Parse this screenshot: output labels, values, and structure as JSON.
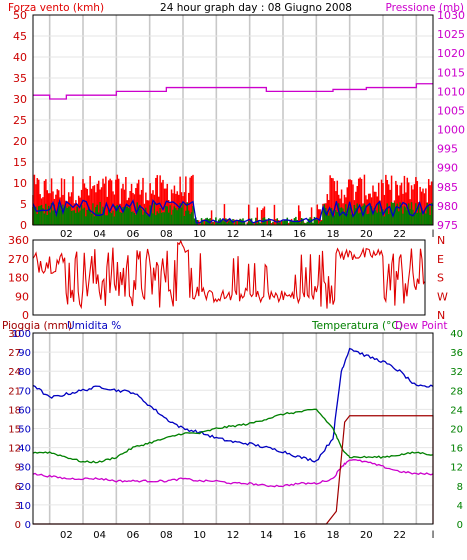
{
  "header": {
    "left_label": "Forza vento (kmh)",
    "title": "24 hour graph day : 08 Giugno 2008",
    "right_label": "Pressione (mb)"
  },
  "bottom_header": {
    "rain_label": "Pioggia (mm)",
    "hum_label": "Umidita %",
    "temp_label": "Temperatura (°C)",
    "dew_label": "Dew Point"
  },
  "colors": {
    "wind": "#ff0000",
    "gust": "#ff0000",
    "green": "#008000",
    "blue": "#0000c0",
    "pressure": "#cc00cc",
    "direction": "#e00000",
    "rain": "#a00000",
    "humidity": "#0000c0",
    "temperature": "#008000",
    "dew": "#cc00cc",
    "grid": "#c8c8c8"
  },
  "chart_data": [
    {
      "type": "line",
      "name": "wind",
      "x_ticks": [
        "02",
        "04",
        "06",
        "08",
        "10",
        "12",
        "14",
        "16",
        "18",
        "20",
        "22",
        "l"
      ],
      "left_axis": {
        "ticks": [
          0,
          5,
          10,
          15,
          20,
          25,
          30,
          35,
          40,
          45,
          50
        ],
        "ylim": [
          0,
          50
        ],
        "label": "Forza vento (kmh)"
      },
      "right_axis": {
        "ticks": [
          975,
          980,
          985,
          990,
          995,
          1000,
          1005,
          1010,
          1015,
          1020,
          1025,
          1030
        ],
        "ylim": [
          975,
          1030
        ],
        "label": "Pressione (mb)"
      },
      "pressure_steps": [
        [
          0,
          1009
        ],
        [
          1,
          1008
        ],
        [
          2,
          1009
        ],
        [
          5,
          1010
        ],
        [
          8,
          1011
        ],
        [
          14,
          1010
        ],
        [
          18,
          1010.5
        ],
        [
          20,
          1011
        ],
        [
          23,
          1012
        ],
        [
          24,
          1012
        ]
      ],
      "wind_max_level": 12,
      "wind_min_level": 4
    },
    {
      "type": "line",
      "name": "direction",
      "left_axis": {
        "ticks": [
          0,
          90,
          180,
          270,
          360
        ],
        "ylim": [
          0,
          360
        ]
      },
      "right_axis": {
        "ticks": [
          "N",
          "W",
          "S",
          "E",
          "N"
        ]
      }
    },
    {
      "type": "line",
      "name": "temp_hum_rain",
      "x_ticks": [
        "02",
        "04",
        "06",
        "08",
        "10",
        "12",
        "14",
        "16",
        "18",
        "20",
        "22",
        "l"
      ],
      "rain_axis": {
        "ticks": [
          0,
          3,
          6,
          9,
          12,
          15,
          18,
          21,
          24,
          27,
          30
        ],
        "ylim": [
          0,
          30
        ]
      },
      "hum_axis": {
        "ticks": [
          0,
          10,
          20,
          30,
          40,
          50,
          60,
          70,
          80,
          90,
          100
        ],
        "ylim": [
          0,
          100
        ]
      },
      "temp_axis": {
        "ticks": [
          0,
          4,
          8,
          12,
          16,
          20,
          24,
          28,
          32,
          36,
          40
        ],
        "ylim": [
          0,
          40
        ]
      },
      "humidity": [
        [
          0,
          73
        ],
        [
          1,
          66
        ],
        [
          2,
          68
        ],
        [
          3,
          70
        ],
        [
          4,
          72
        ],
        [
          5,
          70
        ],
        [
          6,
          69
        ],
        [
          7,
          62
        ],
        [
          8,
          55
        ],
        [
          9,
          50
        ],
        [
          10,
          48
        ],
        [
          11,
          45
        ],
        [
          12,
          43
        ],
        [
          13,
          42
        ],
        [
          14,
          40
        ],
        [
          15,
          38
        ],
        [
          16,
          35
        ],
        [
          17,
          33
        ],
        [
          18,
          45
        ],
        [
          18.5,
          80
        ],
        [
          19,
          92
        ],
        [
          20,
          88
        ],
        [
          21,
          85
        ],
        [
          22,
          80
        ],
        [
          23,
          72
        ],
        [
          24,
          72
        ]
      ],
      "temperature": [
        [
          0,
          15
        ],
        [
          1,
          15
        ],
        [
          2,
          14
        ],
        [
          3,
          13
        ],
        [
          4,
          13
        ],
        [
          5,
          14
        ],
        [
          6,
          16
        ],
        [
          7,
          17
        ],
        [
          8,
          18
        ],
        [
          9,
          19
        ],
        [
          10,
          19
        ],
        [
          11,
          20
        ],
        [
          12,
          20.5
        ],
        [
          13,
          21
        ],
        [
          14,
          22
        ],
        [
          15,
          23
        ],
        [
          16,
          23.5
        ],
        [
          17,
          24
        ],
        [
          18,
          20
        ],
        [
          18.5,
          16
        ],
        [
          19,
          14
        ],
        [
          20,
          14
        ],
        [
          21,
          14
        ],
        [
          22,
          14.5
        ],
        [
          23,
          15
        ],
        [
          24,
          14.5
        ]
      ],
      "dew_point": [
        [
          0,
          10.5
        ],
        [
          1,
          10
        ],
        [
          2,
          9.5
        ],
        [
          3,
          9.5
        ],
        [
          4,
          9.5
        ],
        [
          5,
          9
        ],
        [
          6,
          9
        ],
        [
          7,
          9
        ],
        [
          8,
          9
        ],
        [
          9,
          9.5
        ],
        [
          10,
          9
        ],
        [
          11,
          9
        ],
        [
          12,
          8.5
        ],
        [
          13,
          8.5
        ],
        [
          14,
          8
        ],
        [
          15,
          8
        ],
        [
          16,
          8.5
        ],
        [
          17,
          8.5
        ],
        [
          18,
          9.5
        ],
        [
          18.5,
          12
        ],
        [
          19,
          13.5
        ],
        [
          20,
          13
        ],
        [
          21,
          12
        ],
        [
          22,
          11
        ],
        [
          23,
          10.5
        ],
        [
          24,
          10.5
        ]
      ],
      "rain": [
        [
          0,
          0
        ],
        [
          17.6,
          0
        ],
        [
          18.2,
          2
        ],
        [
          18.7,
          16
        ],
        [
          19,
          17
        ],
        [
          24,
          17
        ],
        [
          24,
          0
        ]
      ]
    }
  ]
}
